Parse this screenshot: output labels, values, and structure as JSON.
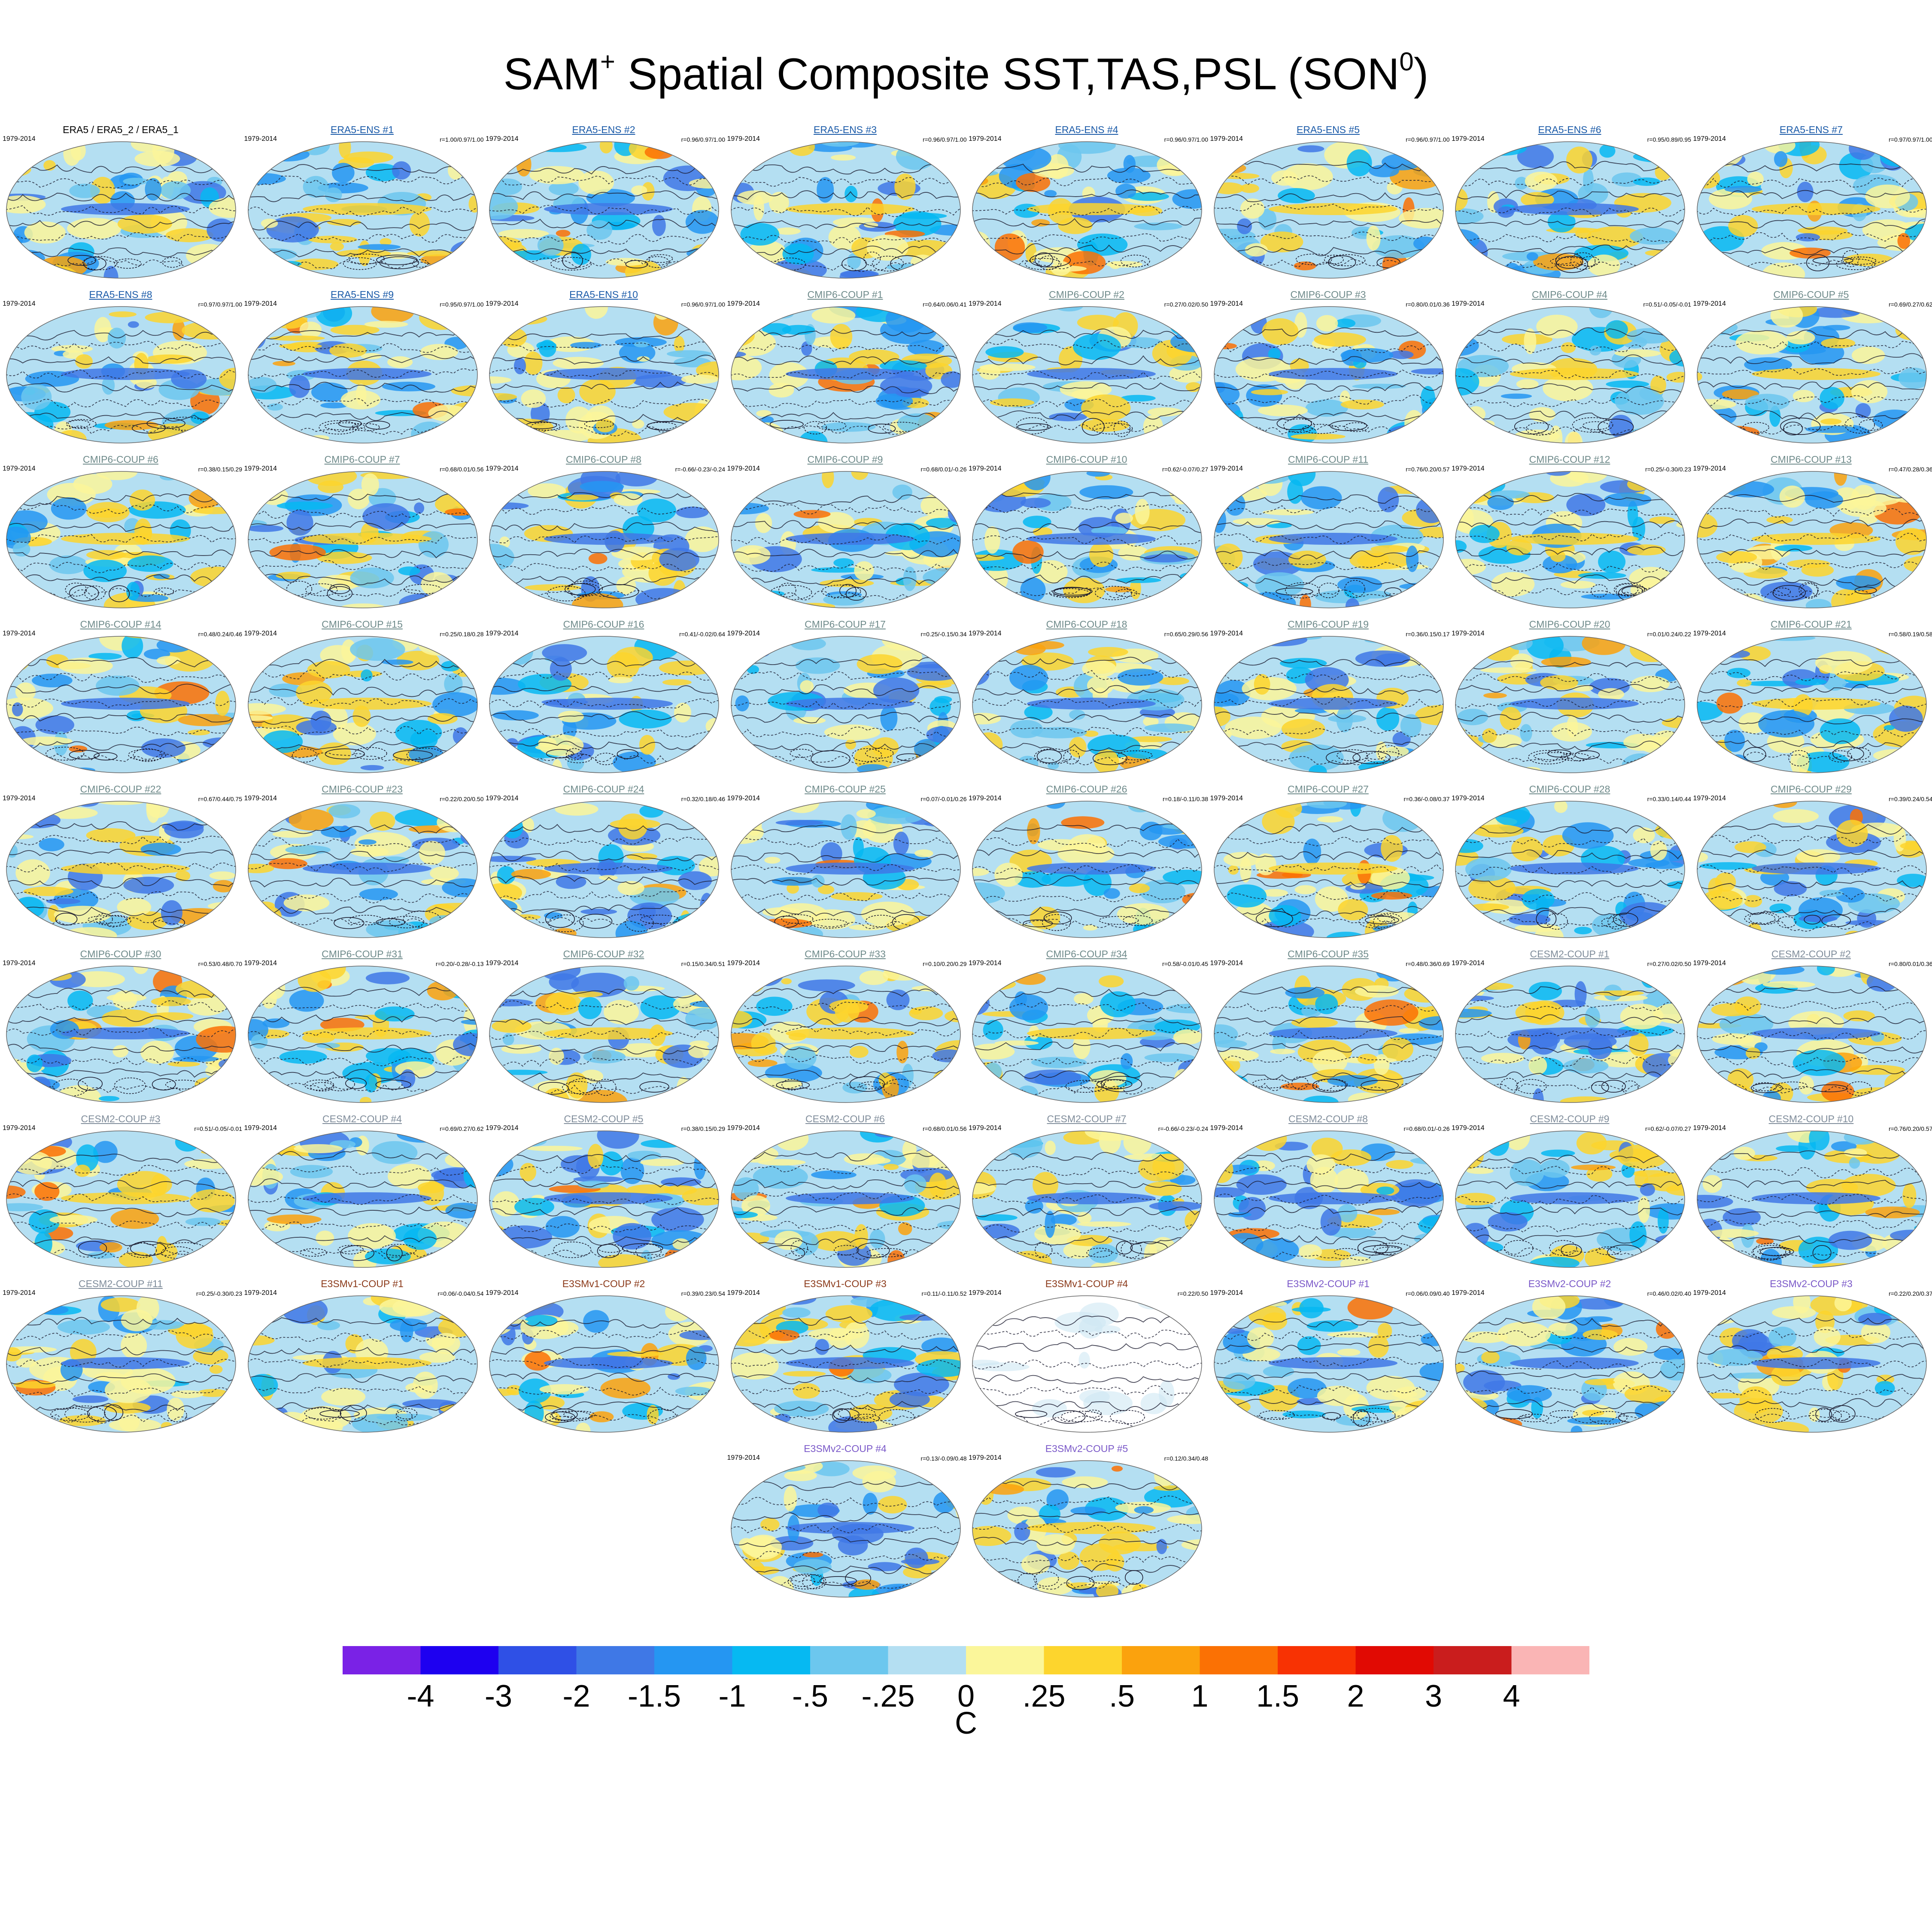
{
  "title": {
    "prefix": "SAM",
    "sup1": "+",
    "middle": " Spatial Composite SST,TAS,PSL (SON",
    "sup2": "0",
    "suffix": ")"
  },
  "colors": {
    "era5": "#000000",
    "era5_ens": "#1a5aa8",
    "cmip6": "#6e8a8a",
    "cesm2": "#7f8c9a",
    "e3smv1": "#8b3a1a",
    "e3smv2": "#7a58c8",
    "contour": "#1a1a2e"
  },
  "panels": [
    {
      "title": "ERA5 / ERA5_2 / ERA5_1",
      "group": "era5",
      "period": "1979-2014",
      "stat": "",
      "underline": false
    },
    {
      "title": "ERA5-ENS   #1",
      "group": "era5_ens",
      "period": "1979-2014",
      "stat": "r=1.00/0.97/1.00",
      "underline": true
    },
    {
      "title": "ERA5-ENS   #2",
      "group": "era5_ens",
      "period": "1979-2014",
      "stat": "r=0.96/0.97/1.00",
      "underline": true
    },
    {
      "title": "ERA5-ENS   #3",
      "group": "era5_ens",
      "period": "1979-2014",
      "stat": "r=0.96/0.97/1.00",
      "underline": true
    },
    {
      "title": "ERA5-ENS   #4",
      "group": "era5_ens",
      "period": "1979-2014",
      "stat": "r=0.96/0.97/1.00",
      "underline": true
    },
    {
      "title": "ERA5-ENS   #5",
      "group": "era5_ens",
      "period": "1979-2014",
      "stat": "r=0.96/0.97/1.00",
      "underline": true
    },
    {
      "title": "ERA5-ENS   #6",
      "group": "era5_ens",
      "period": "1979-2014",
      "stat": "r=0.95/0.89/0.95",
      "underline": true
    },
    {
      "title": "ERA5-ENS   #7",
      "group": "era5_ens",
      "period": "1979-2014",
      "stat": "r=0.97/0.97/1.00",
      "underline": true
    },
    {
      "title": "ERA5-ENS   #8",
      "group": "era5_ens",
      "period": "1979-2014",
      "stat": "r=0.97/0.97/1.00",
      "underline": true
    },
    {
      "title": "ERA5-ENS   #9",
      "group": "era5_ens",
      "period": "1979-2014",
      "stat": "r=0.95/0.97/1.00",
      "underline": true
    },
    {
      "title": "ERA5-ENS   #10",
      "group": "era5_ens",
      "period": "1979-2014",
      "stat": "r=0.96/0.97/1.00",
      "underline": true
    },
    {
      "title": "CMIP6-COUP  #1",
      "group": "cmip6",
      "period": "1979-2014",
      "stat": "r=0.64/0.06/0.41",
      "underline": true
    },
    {
      "title": "CMIP6-COUP  #2",
      "group": "cmip6",
      "period": "1979-2014",
      "stat": "r=0.27/0.02/0.50",
      "underline": true
    },
    {
      "title": "CMIP6-COUP  #3",
      "group": "cmip6",
      "period": "1979-2014",
      "stat": "r=0.80/0.01/0.36",
      "underline": true
    },
    {
      "title": "CMIP6-COUP  #4",
      "group": "cmip6",
      "period": "1979-2014",
      "stat": "r=0.51/-0.05/-0.01",
      "underline": true
    },
    {
      "title": "CMIP6-COUP  #5",
      "group": "cmip6",
      "period": "1979-2014",
      "stat": "r=0.69/0.27/0.62",
      "underline": true
    },
    {
      "title": "CMIP6-COUP  #6",
      "group": "cmip6",
      "period": "1979-2014",
      "stat": "r=0.38/0.15/0.29",
      "underline": true
    },
    {
      "title": "CMIP6-COUP  #7",
      "group": "cmip6",
      "period": "1979-2014",
      "stat": "r=0.68/0.01/0.56",
      "underline": true
    },
    {
      "title": "CMIP6-COUP  #8",
      "group": "cmip6",
      "period": "1979-2014",
      "stat": "r=-0.66/-0.23/-0.24",
      "underline": true
    },
    {
      "title": "CMIP6-COUP  #9",
      "group": "cmip6",
      "period": "1979-2014",
      "stat": "r=0.68/0.01/-0.26",
      "underline": true
    },
    {
      "title": "CMIP6-COUP  #10",
      "group": "cmip6",
      "period": "1979-2014",
      "stat": "r=0.62/-0.07/0.27",
      "underline": true
    },
    {
      "title": "CMIP6-COUP  #11",
      "group": "cmip6",
      "period": "1979-2014",
      "stat": "r=0.76/0.20/0.57",
      "underline": true
    },
    {
      "title": "CMIP6-COUP  #12",
      "group": "cmip6",
      "period": "1979-2014",
      "stat": "r=0.25/-0.30/0.23",
      "underline": true
    },
    {
      "title": "CMIP6-COUP  #13",
      "group": "cmip6",
      "period": "1979-2014",
      "stat": "r=0.47/0.28/0.36",
      "underline": true
    },
    {
      "title": "CMIP6-COUP  #14",
      "group": "cmip6",
      "period": "1979-2014",
      "stat": "r=0.48/0.24/0.46",
      "underline": true
    },
    {
      "title": "CMIP6-COUP  #15",
      "group": "cmip6",
      "period": "1979-2014",
      "stat": "r=0.25/0.18/0.28",
      "underline": true
    },
    {
      "title": "CMIP6-COUP  #16",
      "group": "cmip6",
      "period": "1979-2014",
      "stat": "r=0.41/-0.02/0.64",
      "underline": true
    },
    {
      "title": "CMIP6-COUP  #17",
      "group": "cmip6",
      "period": "1979-2014",
      "stat": "r=0.25/-0.15/0.34",
      "underline": true
    },
    {
      "title": "CMIP6-COUP  #18",
      "group": "cmip6",
      "period": "1979-2014",
      "stat": "r=0.65/0.29/0.56",
      "underline": true
    },
    {
      "title": "CMIP6-COUP  #19",
      "group": "cmip6",
      "period": "1979-2014",
      "stat": "r=0.36/0.15/0.17",
      "underline": true
    },
    {
      "title": "CMIP6-COUP  #20",
      "group": "cmip6",
      "period": "1979-2014",
      "stat": "r=0.01/0.24/0.22",
      "underline": true
    },
    {
      "title": "CMIP6-COUP  #21",
      "group": "cmip6",
      "period": "1979-2014",
      "stat": "r=0.58/0.19/0.58",
      "underline": true
    },
    {
      "title": "CMIP6-COUP  #22",
      "group": "cmip6",
      "period": "1979-2014",
      "stat": "r=0.67/0.44/0.75",
      "underline": true
    },
    {
      "title": "CMIP6-COUP  #23",
      "group": "cmip6",
      "period": "1979-2014",
      "stat": "r=0.22/0.20/0.50",
      "underline": true
    },
    {
      "title": "CMIP6-COUP  #24",
      "group": "cmip6",
      "period": "1979-2014",
      "stat": "r=0.32/0.18/0.46",
      "underline": true
    },
    {
      "title": "CMIP6-COUP  #25",
      "group": "cmip6",
      "period": "1979-2014",
      "stat": "r=0.07/-0.01/0.26",
      "underline": true
    },
    {
      "title": "CMIP6-COUP  #26",
      "group": "cmip6",
      "period": "1979-2014",
      "stat": "r=0.18/-0.11/0.38",
      "underline": true
    },
    {
      "title": "CMIP6-COUP  #27",
      "group": "cmip6",
      "period": "1979-2014",
      "stat": "r=0.36/-0.08/0.37",
      "underline": true
    },
    {
      "title": "CMIP6-COUP  #28",
      "group": "cmip6",
      "period": "1979-2014",
      "stat": "r=0.33/0.14/0.44",
      "underline": true
    },
    {
      "title": "CMIP6-COUP  #29",
      "group": "cmip6",
      "period": "1979-2014",
      "stat": "r=0.39/0.24/0.54",
      "underline": true
    },
    {
      "title": "CMIP6-COUP  #30",
      "group": "cmip6",
      "period": "1979-2014",
      "stat": "r=0.53/0.48/0.70",
      "underline": true
    },
    {
      "title": "CMIP6-COUP  #31",
      "group": "cmip6",
      "period": "1979-2014",
      "stat": "r=0.20/-0.28/-0.13",
      "underline": true
    },
    {
      "title": "CMIP6-COUP  #32",
      "group": "cmip6",
      "period": "1979-2014",
      "stat": "r=0.15/0.34/0.51",
      "underline": true
    },
    {
      "title": "CMIP6-COUP  #33",
      "group": "cmip6",
      "period": "1979-2014",
      "stat": "r=0.10/0.20/0.29",
      "underline": true
    },
    {
      "title": "CMIP6-COUP  #34",
      "group": "cmip6",
      "period": "1979-2014",
      "stat": "r=0.58/-0.01/0.45",
      "underline": true
    },
    {
      "title": "CMIP6-COUP  #35",
      "group": "cmip6",
      "period": "1979-2014",
      "stat": "r=0.48/0.36/0.69",
      "underline": true
    },
    {
      "title": "CESM2-COUP   #1",
      "group": "cesm2",
      "period": "1979-2014",
      "stat": "r=0.27/0.02/0.50",
      "underline": true
    },
    {
      "title": "CESM2-COUP   #2",
      "group": "cesm2",
      "period": "1979-2014",
      "stat": "r=0.80/0.01/0.36",
      "underline": true
    },
    {
      "title": "CESM2-COUP   #3",
      "group": "cesm2",
      "period": "1979-2014",
      "stat": "r=0.51/-0.05/-0.01",
      "underline": true
    },
    {
      "title": "CESM2-COUP   #4",
      "group": "cesm2",
      "period": "1979-2014",
      "stat": "r=0.69/0.27/0.62",
      "underline": true
    },
    {
      "title": "CESM2-COUP   #5",
      "group": "cesm2",
      "period": "1979-2014",
      "stat": "r=0.38/0.15/0.29",
      "underline": true
    },
    {
      "title": "CESM2-COUP   #6",
      "group": "cesm2",
      "period": "1979-2014",
      "stat": "r=0.68/0.01/0.56",
      "underline": true
    },
    {
      "title": "CESM2-COUP   #7",
      "group": "cesm2",
      "period": "1979-2014",
      "stat": "r=-0.66/-0.23/-0.24",
      "underline": true
    },
    {
      "title": "CESM2-COUP   #8",
      "group": "cesm2",
      "period": "1979-2014",
      "stat": "r=0.68/0.01/-0.26",
      "underline": true
    },
    {
      "title": "CESM2-COUP   #9",
      "group": "cesm2",
      "period": "1979-2014",
      "stat": "r=0.62/-0.07/0.27",
      "underline": true
    },
    {
      "title": "CESM2-COUP   #10",
      "group": "cesm2",
      "period": "1979-2014",
      "stat": "r=0.76/0.20/0.57",
      "underline": true
    },
    {
      "title": "CESM2-COUP   #11",
      "group": "cesm2",
      "period": "1979-2014",
      "stat": "r=0.25/-0.30/0.23",
      "underline": true
    },
    {
      "title": "E3SMv1-COUP #1",
      "group": "e3smv1",
      "period": "1979-2014",
      "stat": "r=0.06/-0.04/0.54",
      "underline": false
    },
    {
      "title": "E3SMv1-COUP #2",
      "group": "e3smv1",
      "period": "1979-2014",
      "stat": "r=0.39/0.23/0.54",
      "underline": false
    },
    {
      "title": "E3SMv1-COUP #3",
      "group": "e3smv1",
      "period": "1979-2014",
      "stat": "r=0.11/-0.11/0.52",
      "underline": false
    },
    {
      "title": "E3SMv1-COUP #4",
      "group": "e3smv1",
      "period": "1979-2014",
      "stat": "r=0.22/0.50",
      "underline": false
    },
    {
      "title": "E3SMv2-COUP #1",
      "group": "e3smv2",
      "period": "1979-2014",
      "stat": "r=0.06/0.09/0.40",
      "underline": false
    },
    {
      "title": "E3SMv2-COUP #2",
      "group": "e3smv2",
      "period": "1979-2014",
      "stat": "r=0.46/0.02/0.40",
      "underline": false
    },
    {
      "title": "E3SMv2-COUP #3",
      "group": "e3smv2",
      "period": "1979-2014",
      "stat": "r=0.22/0.20/0.37",
      "underline": false
    },
    {
      "title": "E3SMv2-COUP #4",
      "group": "e3smv2",
      "period": "1979-2014",
      "stat": "r=0.13/-0.09/0.48",
      "underline": false
    },
    {
      "title": "E3SMv2-COUP #5",
      "group": "e3smv2",
      "period": "1979-2014",
      "stat": "r=0.12/0.34/0.48",
      "underline": false
    }
  ],
  "colorbar": {
    "unit": "C",
    "labels": [
      "-4",
      "-3",
      "-2",
      "-1.5",
      "-1",
      "-.5",
      "-.25",
      "0",
      ".25",
      ".5",
      "1",
      "1.5",
      "2",
      "3",
      "4"
    ],
    "colors": [
      "#7a22e6",
      "#1e00f0",
      "#2f50e6",
      "#3f78e6",
      "#2596f2",
      "#06b9f2",
      "#6cc7ee",
      "#b4dff2",
      "#fbf69a",
      "#fdd52d",
      "#fba20d",
      "#fb7104",
      "#f83203",
      "#e10a03",
      "#ca1d1d",
      "#fab5b5"
    ]
  }
}
